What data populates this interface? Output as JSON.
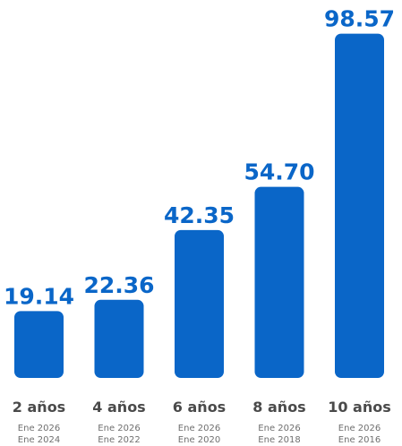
{
  "chart_data": {
    "type": "bar",
    "categories": [
      "2 años",
      "4 años",
      "6 años",
      "8 años",
      "10 años"
    ],
    "values": [
      19.14,
      22.36,
      42.35,
      54.7,
      98.57
    ],
    "value_labels": [
      "19.14",
      "22.36",
      "42.35",
      "54.70",
      "98.57"
    ],
    "period_end": [
      "Ene 2026",
      "Ene 2026",
      "Ene 2026",
      "Ene 2026",
      "Ene 2026"
    ],
    "period_start": [
      "Ene 2024",
      "Ene 2022",
      "Ene 2020",
      "Ene 2018",
      "Ene 2016"
    ],
    "ylim": [
      0,
      100
    ],
    "grid": false,
    "colors": {
      "bar": "#0a66c8",
      "value_label": "#0a66c8",
      "category_label": "#4a4a4a",
      "range_label": "#6f6f6f"
    }
  }
}
